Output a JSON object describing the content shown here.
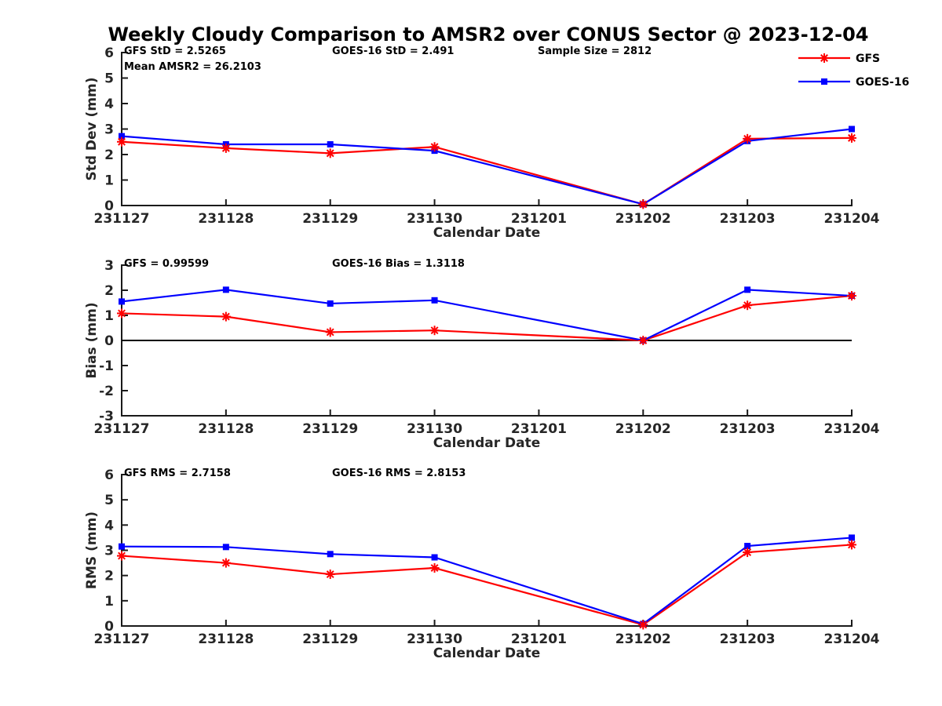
{
  "title": "Weekly Cloudy Comparison to AMSR2 over CONUS Sector @ 2023-12-04",
  "x_axis": {
    "label": "Calendar Date",
    "categories": [
      "231127",
      "231128",
      "231129",
      "231130",
      "231201",
      "231202",
      "231203",
      "231204"
    ]
  },
  "legend": {
    "entries": [
      {
        "label": "GFS",
        "color": "#ff0000",
        "marker": "star"
      },
      {
        "label": "GOES-16",
        "color": "#0000ff",
        "marker": "square"
      }
    ]
  },
  "colors": {
    "gfs": "#ff0000",
    "goes16": "#0000ff",
    "axis": "#1a1a1a",
    "tick_text": "#262626",
    "zero_line": "#000000",
    "background": "#ffffff"
  },
  "chart_data": [
    {
      "type": "line",
      "name": "std-dev",
      "ylabel": "Std Dev (mm)",
      "xlabel": "Calendar Date",
      "ylim": [
        0,
        6
      ],
      "ytick_step": 1,
      "grid": false,
      "zero_line": false,
      "annotations": [
        {
          "text": "GFS StD = 2.5265",
          "col": 0,
          "row": 0
        },
        {
          "text": "Mean AMSR2 = 26.2103",
          "col": 0,
          "row": 1
        },
        {
          "text": "GOES-16 StD = 2.491",
          "col": 1,
          "row": 0
        },
        {
          "text": "Sample Size = 2812",
          "col": 2,
          "row": 0
        }
      ],
      "series": [
        {
          "name": "GFS",
          "color": "#ff0000",
          "marker": "star",
          "points": [
            [
              "231127",
              2.5
            ],
            [
              "231128",
              2.25
            ],
            [
              "231129",
              2.05
            ],
            [
              "231130",
              2.3
            ],
            [
              "231202",
              0.05
            ],
            [
              "231203",
              2.62
            ],
            [
              "231204",
              2.65
            ]
          ]
        },
        {
          "name": "GOES-16",
          "color": "#0000ff",
          "marker": "square",
          "points": [
            [
              "231127",
              2.72
            ],
            [
              "231128",
              2.4
            ],
            [
              "231129",
              2.4
            ],
            [
              "231130",
              2.15
            ],
            [
              "231202",
              0.05
            ],
            [
              "231203",
              2.53
            ],
            [
              "231204",
              3.0
            ]
          ]
        }
      ]
    },
    {
      "type": "line",
      "name": "bias",
      "ylabel": "Bias (mm)",
      "xlabel": "Calendar Date",
      "ylim": [
        -3,
        3
      ],
      "ytick_step": 1,
      "grid": false,
      "zero_line": true,
      "annotations": [
        {
          "text": "GFS = 0.99599",
          "col": 0,
          "row": 0
        },
        {
          "text": "GOES-16 Bias  = 1.3118",
          "col": 1,
          "row": 0
        }
      ],
      "series": [
        {
          "name": "GFS",
          "color": "#ff0000",
          "marker": "star",
          "points": [
            [
              "231127",
              1.08
            ],
            [
              "231128",
              0.95
            ],
            [
              "231129",
              0.33
            ],
            [
              "231130",
              0.4
            ],
            [
              "231202",
              0.0
            ],
            [
              "231203",
              1.4
            ],
            [
              "231204",
              1.78
            ]
          ]
        },
        {
          "name": "GOES-16",
          "color": "#0000ff",
          "marker": "square",
          "points": [
            [
              "231127",
              1.55
            ],
            [
              "231128",
              2.02
            ],
            [
              "231129",
              1.47
            ],
            [
              "231130",
              1.6
            ],
            [
              "231202",
              0.0
            ],
            [
              "231203",
              2.02
            ],
            [
              "231204",
              1.78
            ]
          ]
        }
      ]
    },
    {
      "type": "line",
      "name": "rms",
      "ylabel": "RMS (mm)",
      "xlabel": "Calendar Date",
      "ylim": [
        0,
        6
      ],
      "ytick_step": 1,
      "grid": false,
      "zero_line": false,
      "annotations": [
        {
          "text": "GFS RMS = 2.7158",
          "col": 0,
          "row": 0
        },
        {
          "text": "GOES-16 RMS = 2.8153",
          "col": 1,
          "row": 0
        }
      ],
      "series": [
        {
          "name": "GFS",
          "color": "#ff0000",
          "marker": "star",
          "points": [
            [
              "231127",
              2.78
            ],
            [
              "231128",
              2.5
            ],
            [
              "231129",
              2.05
            ],
            [
              "231130",
              2.3
            ],
            [
              "231202",
              0.05
            ],
            [
              "231203",
              2.92
            ],
            [
              "231204",
              3.22
            ]
          ]
        },
        {
          "name": "GOES-16",
          "color": "#0000ff",
          "marker": "square",
          "points": [
            [
              "231127",
              3.15
            ],
            [
              "231128",
              3.13
            ],
            [
              "231129",
              2.85
            ],
            [
              "231130",
              2.72
            ],
            [
              "231202",
              0.08
            ],
            [
              "231203",
              3.17
            ],
            [
              "231204",
              3.5
            ]
          ]
        }
      ]
    }
  ]
}
